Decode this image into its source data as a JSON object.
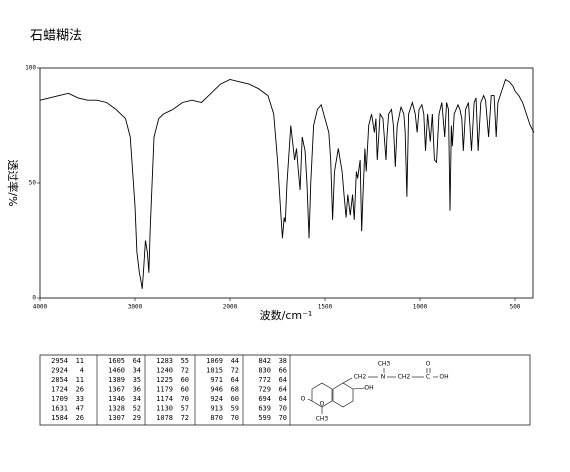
{
  "chart_data": {
    "type": "line",
    "title": "石蜡糊法",
    "xlabel": "波数/cm⁻¹",
    "ylabel": "透过率/%",
    "x": [
      4000,
      3900,
      3800,
      3700,
      3600,
      3500,
      3400,
      3300,
      3200,
      3100,
      3050,
      3000,
      2980,
      2954,
      2940,
      2924,
      2910,
      2890,
      2870,
      2854,
      2840,
      2800,
      2750,
      2700,
      2650,
      2600,
      2500,
      2400,
      2300,
      2200,
      2100,
      2000,
      1950,
      1900,
      1850,
      1800,
      1770,
      1750,
      1735,
      1724,
      1715,
      1709,
      1700,
      1680,
      1660,
      1650,
      1640,
      1631,
      1620,
      1605,
      1595,
      1584,
      1575,
      1560,
      1540,
      1520,
      1500,
      1480,
      1470,
      1460,
      1450,
      1430,
      1410,
      1400,
      1389,
      1380,
      1367,
      1355,
      1346,
      1335,
      1328,
      1315,
      1307,
      1300,
      1290,
      1283,
      1270,
      1255,
      1240,
      1232,
      1225,
      1210,
      1195,
      1179,
      1174,
      1165,
      1150,
      1140,
      1130,
      1120,
      1100,
      1085,
      1078,
      1069,
      1060,
      1040,
      1025,
      1015,
      1005,
      990,
      980,
      971,
      960,
      946,
      935,
      924,
      913,
      900,
      885,
      870,
      860,
      850,
      842,
      835,
      830,
      820,
      800,
      790,
      780,
      772,
      760,
      745,
      729,
      715,
      705,
      694,
      680,
      665,
      655,
      639,
      625,
      610,
      599,
      590,
      570,
      550,
      530,
      510,
      500,
      480,
      460,
      440,
      420,
      400
    ],
    "series": [
      {
        "color": "#000000",
        "values": [
          86,
          87,
          88,
          89,
          87,
          86,
          86,
          85,
          82,
          78,
          70,
          40,
          20,
          11,
          8,
          4,
          12,
          25,
          20,
          11,
          30,
          70,
          78,
          80,
          81,
          82,
          85,
          86,
          85,
          89,
          93,
          95,
          94,
          93,
          91,
          88,
          80,
          60,
          40,
          26,
          35,
          33,
          50,
          75,
          60,
          65,
          55,
          47,
          70,
          64,
          50,
          26,
          50,
          75,
          82,
          84,
          78,
          72,
          60,
          34,
          55,
          65,
          55,
          45,
          35,
          45,
          36,
          45,
          34,
          55,
          52,
          60,
          29,
          45,
          65,
          55,
          75,
          80,
          72,
          78,
          60,
          80,
          78,
          60,
          70,
          80,
          82,
          75,
          57,
          75,
          83,
          80,
          72,
          44,
          80,
          85,
          80,
          72,
          82,
          84,
          80,
          64,
          80,
          68,
          80,
          60,
          59,
          80,
          85,
          70,
          85,
          82,
          38,
          75,
          66,
          80,
          84,
          82,
          78,
          64,
          82,
          85,
          64,
          85,
          87,
          64,
          85,
          88,
          86,
          70,
          88,
          88,
          70,
          85,
          90,
          95,
          94,
          92,
          90,
          88,
          85,
          80,
          75,
          72
        ]
      }
    ],
    "xlim": [
      4000,
      400
    ],
    "xticks": [
      4000,
      3000,
      2000,
      1500,
      1000,
      500
    ],
    "ylim": [
      0,
      100
    ],
    "yticks": [
      0,
      50,
      100
    ]
  },
  "peak_table": {
    "columns": [
      [
        [
          2954,
          11
        ],
        [
          2924,
          4
        ],
        [
          2854,
          11
        ],
        [
          1724,
          26
        ],
        [
          1709,
          33
        ],
        [
          1631,
          47
        ],
        [
          1584,
          26
        ]
      ],
      [
        [
          1605,
          64
        ],
        [
          1460,
          34
        ],
        [
          1389,
          35
        ],
        [
          1367,
          36
        ],
        [
          1346,
          34
        ],
        [
          1328,
          52
        ],
        [
          1307,
          29
        ]
      ],
      [
        [
          1283,
          55
        ],
        [
          1240,
          72
        ],
        [
          1225,
          60
        ],
        [
          1179,
          60
        ],
        [
          1174,
          70
        ],
        [
          1130,
          57
        ],
        [
          1078,
          72
        ]
      ],
      [
        [
          1069,
          44
        ],
        [
          1015,
          72
        ],
        [
          971,
          64
        ],
        [
          946,
          68
        ],
        [
          924,
          60
        ],
        [
          913,
          59
        ],
        [
          870,
          70
        ]
      ],
      [
        [
          842,
          38
        ],
        [
          830,
          66
        ],
        [
          772,
          64
        ],
        [
          729,
          64
        ],
        [
          694,
          64
        ],
        [
          639,
          70
        ],
        [
          599,
          70
        ]
      ]
    ]
  },
  "structure": {
    "labels": [
      "CH3",
      "CH2",
      "N",
      "CH2",
      "C",
      "O",
      "OH",
      "OH",
      "O",
      "O",
      "CH3"
    ]
  }
}
